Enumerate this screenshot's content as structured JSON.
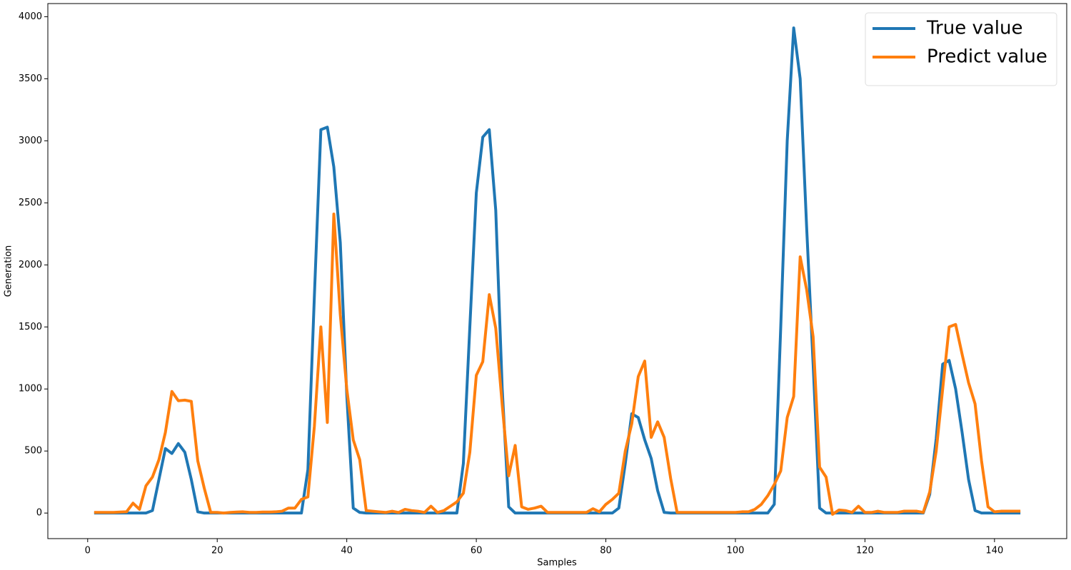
{
  "chart_data": {
    "type": "line",
    "x_label": "Samples",
    "y_label": "Generation",
    "x": [
      1,
      2,
      3,
      4,
      5,
      6,
      7,
      8,
      9,
      10,
      11,
      12,
      13,
      14,
      15,
      16,
      17,
      18,
      19,
      20,
      21,
      22,
      23,
      24,
      25,
      26,
      27,
      28,
      29,
      30,
      31,
      32,
      33,
      34,
      35,
      36,
      37,
      38,
      39,
      40,
      41,
      42,
      43,
      44,
      45,
      46,
      47,
      48,
      49,
      50,
      51,
      52,
      53,
      54,
      55,
      56,
      57,
      58,
      59,
      60,
      61,
      62,
      63,
      64,
      65,
      66,
      67,
      68,
      69,
      70,
      71,
      72,
      73,
      74,
      75,
      76,
      77,
      78,
      79,
      80,
      81,
      82,
      83,
      84,
      85,
      86,
      87,
      88,
      89,
      90,
      91,
      92,
      93,
      94,
      95,
      96,
      97,
      98,
      99,
      100,
      101,
      102,
      103,
      104,
      105,
      106,
      107,
      108,
      109,
      110,
      111,
      112,
      113,
      114,
      115,
      116,
      117,
      118,
      119,
      120,
      121,
      122,
      123,
      124,
      125,
      126,
      127,
      128,
      129,
      130,
      131,
      132,
      133,
      134,
      135,
      136,
      137,
      138,
      139,
      140,
      141,
      142,
      143,
      144
    ],
    "series": [
      {
        "name": "True value",
        "color": "#1f77b4",
        "values": [
          0,
          0,
          0,
          0,
          0,
          0,
          0,
          0,
          0,
          20,
          270,
          520,
          480,
          560,
          490,
          270,
          10,
          0,
          0,
          0,
          0,
          0,
          0,
          0,
          0,
          0,
          0,
          0,
          0,
          0,
          0,
          0,
          0,
          350,
          1750,
          3090,
          3110,
          2790,
          2180,
          950,
          40,
          5,
          0,
          0,
          0,
          0,
          0,
          0,
          0,
          0,
          0,
          0,
          0,
          0,
          0,
          0,
          0,
          400,
          1500,
          2580,
          3030,
          3090,
          2440,
          1000,
          50,
          0,
          0,
          0,
          0,
          0,
          0,
          0,
          0,
          0,
          0,
          0,
          0,
          0,
          0,
          0,
          0,
          40,
          400,
          800,
          770,
          590,
          440,
          180,
          5,
          0,
          0,
          0,
          0,
          0,
          0,
          0,
          0,
          0,
          0,
          0,
          0,
          0,
          0,
          0,
          0,
          70,
          1500,
          3000,
          3910,
          3500,
          2300,
          1200,
          40,
          0,
          0,
          0,
          0,
          0,
          0,
          0,
          0,
          0,
          0,
          0,
          0,
          0,
          0,
          0,
          0,
          150,
          600,
          1200,
          1230,
          1000,
          650,
          270,
          20,
          0,
          0,
          0,
          0,
          0,
          0,
          0
        ]
      },
      {
        "name": "Predict value",
        "color": "#ff7f0e",
        "values": [
          5,
          5,
          5,
          5,
          8,
          10,
          80,
          30,
          220,
          290,
          430,
          650,
          980,
          905,
          910,
          900,
          420,
          200,
          5,
          5,
          0,
          5,
          8,
          10,
          5,
          5,
          8,
          8,
          10,
          15,
          40,
          40,
          110,
          130,
          700,
          1500,
          730,
          2410,
          1600,
          1000,
          590,
          430,
          20,
          15,
          10,
          5,
          15,
          5,
          30,
          20,
          15,
          5,
          55,
          5,
          20,
          55,
          90,
          160,
          490,
          1110,
          1220,
          1760,
          1490,
          870,
          300,
          545,
          50,
          30,
          40,
          55,
          5,
          5,
          5,
          5,
          5,
          5,
          5,
          35,
          10,
          70,
          110,
          160,
          500,
          720,
          1100,
          1225,
          610,
          735,
          610,
          280,
          5,
          5,
          5,
          5,
          5,
          5,
          5,
          5,
          5,
          5,
          10,
          10,
          30,
          70,
          140,
          230,
          340,
          770,
          940,
          2065,
          1800,
          1420,
          370,
          290,
          -10,
          25,
          20,
          5,
          55,
          5,
          5,
          15,
          5,
          5,
          5,
          15,
          15,
          15,
          5,
          170,
          500,
          1000,
          1500,
          1520,
          1280,
          1050,
          880,
          420,
          50,
          10,
          15,
          15,
          15,
          15
        ]
      }
    ],
    "xlim": [
      -6.15,
      151.15
    ],
    "ylim": [
      -206,
      4106
    ],
    "xticks": [
      0,
      20,
      40,
      60,
      80,
      100,
      120,
      140
    ],
    "yticks": [
      0,
      500,
      1000,
      1500,
      2000,
      2500,
      3000,
      3500,
      4000
    ],
    "legend": "upper right"
  }
}
